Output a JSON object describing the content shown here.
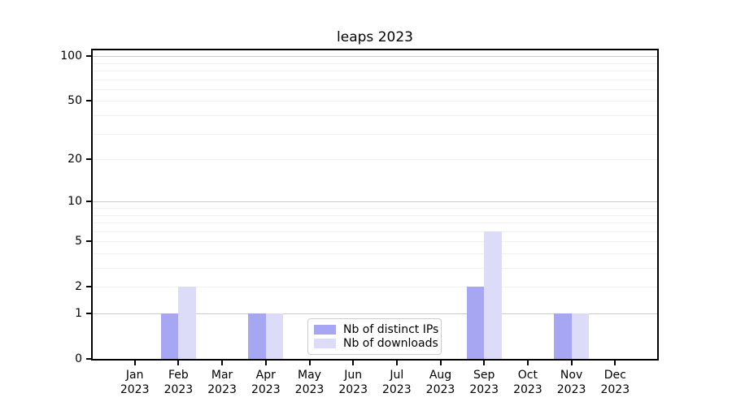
{
  "chart_data": {
    "type": "bar",
    "title": "leaps 2023",
    "year_label": "2023",
    "months": [
      "Jan",
      "Feb",
      "Mar",
      "Apr",
      "May",
      "Jun",
      "Jul",
      "Aug",
      "Sep",
      "Oct",
      "Nov",
      "Dec"
    ],
    "series": [
      {
        "name": "Nb of distinct IPs",
        "color": "#a6a6f2",
        "values": [
          0,
          1,
          0,
          1,
          0,
          0,
          0,
          0,
          2,
          0,
          1,
          0
        ]
      },
      {
        "name": "Nb of downloads",
        "color": "#dcdcf9",
        "values": [
          0,
          2,
          0,
          1,
          0,
          0,
          0,
          0,
          6,
          0,
          1,
          0
        ]
      }
    ],
    "y_ticks": [
      0,
      1,
      2,
      5,
      10,
      20,
      50,
      100
    ],
    "y_scale": "log1p",
    "ylim": [
      0,
      110
    ],
    "y_major_gridlines": [
      1,
      10,
      100
    ],
    "y_minor_gridlines": [
      2,
      3,
      4,
      5,
      6,
      7,
      8,
      9,
      20,
      30,
      40,
      50,
      60,
      70,
      80,
      90
    ],
    "grid": "horizontal, major darker + minor faint",
    "legend_position": "lower center",
    "colors": {
      "major_grid": "#c9c9c9",
      "minor_grid": "#f0f0f0",
      "axis": "#000000"
    }
  }
}
